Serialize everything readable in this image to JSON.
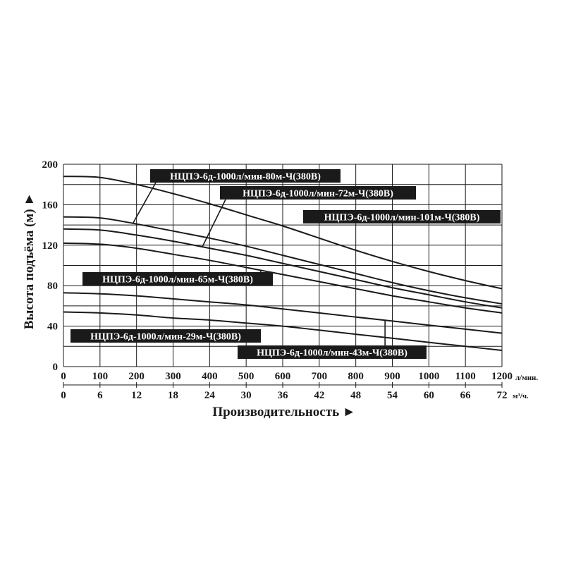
{
  "chart_data": {
    "type": "line",
    "title": "",
    "xlabel": "Производительность ►",
    "ylabel": "Высота подъёма (м) ►",
    "x_unit": "л/мин.",
    "x2_unit": "м³/ч.",
    "xlim": [
      0,
      1200
    ],
    "ylim": [
      0,
      200
    ],
    "x_ticks": [
      0,
      100,
      200,
      300,
      400,
      500,
      600,
      700,
      800,
      900,
      1000,
      1100,
      1200
    ],
    "x2_ticks": [
      0,
      6,
      12,
      18,
      24,
      30,
      36,
      42,
      48,
      54,
      60,
      66,
      72
    ],
    "y_ticks": [
      0,
      40,
      80,
      120,
      160,
      200
    ],
    "grid": true,
    "series": [
      {
        "name": "НЦПЭ-6д-1000л/мин-101м-Ч(380В)",
        "x": [
          0,
          100,
          200,
          300,
          400,
          500,
          600,
          700,
          800,
          900,
          1000,
          1100,
          1200
        ],
        "y": [
          188,
          187,
          180,
          171,
          161,
          150,
          139,
          127,
          115,
          104,
          94,
          85,
          77
        ]
      },
      {
        "name": "НЦПЭ-6д-1000л/мин-80м-Ч(380В)",
        "x": [
          0,
          100,
          200,
          300,
          400,
          500,
          600,
          700,
          800,
          900,
          1000,
          1100,
          1200
        ],
        "y": [
          148,
          147,
          141,
          134,
          127,
          119,
          110,
          101,
          92,
          83,
          75,
          68,
          62
        ]
      },
      {
        "name": "НЦПЭ-6д-1000л/мин-72м-Ч(380В)",
        "x": [
          0,
          100,
          200,
          300,
          400,
          500,
          600,
          700,
          800,
          900,
          1000,
          1100,
          1200
        ],
        "y": [
          136,
          135,
          130,
          124,
          117,
          110,
          102,
          94,
          86,
          78,
          71,
          64,
          58
        ]
      },
      {
        "name": "НЦПЭ-6д-1000л/мин-65м-Ч(380В)",
        "x": [
          0,
          100,
          200,
          300,
          400,
          500,
          600,
          700,
          800,
          900,
          1000,
          1100,
          1200
        ],
        "y": [
          122,
          121,
          117,
          111,
          105,
          98,
          91,
          84,
          77,
          70,
          64,
          58,
          53
        ]
      },
      {
        "name": "НЦПЭ-6д-1000л/мин-43м-Ч(380В)",
        "x": [
          0,
          100,
          200,
          300,
          400,
          500,
          600,
          700,
          800,
          900,
          1000,
          1100,
          1200
        ],
        "y": [
          73,
          72,
          70,
          67,
          64,
          61,
          57,
          53,
          49,
          45,
          41,
          37,
          33
        ]
      },
      {
        "name": "НЦПЭ-6д-1000л/мин-29м-Ч(380В)",
        "x": [
          0,
          100,
          200,
          300,
          400,
          500,
          600,
          700,
          800,
          900,
          1000,
          1100,
          1200
        ],
        "y": [
          54,
          53,
          51,
          48,
          46,
          43,
          40,
          36,
          32,
          28,
          24,
          20,
          16
        ]
      }
    ]
  }
}
